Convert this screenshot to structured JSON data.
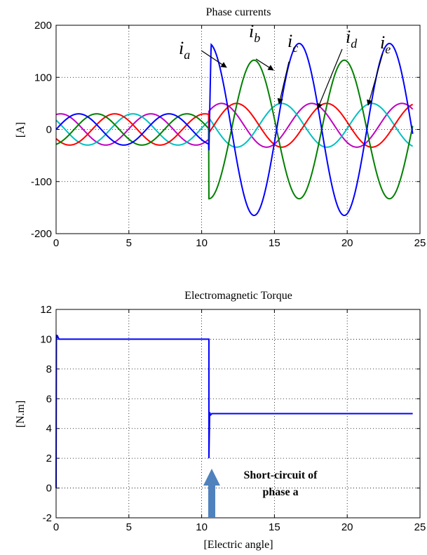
{
  "chart_data": [
    {
      "type": "line",
      "title": "Phase currents",
      "xlabel": "",
      "ylabel": "[A]",
      "xlim": [
        0,
        25
      ],
      "ylim": [
        -200,
        200
      ],
      "xticks": [
        0,
        5,
        10,
        15,
        20,
        25
      ],
      "yticks": [
        -200,
        -100,
        0,
        100,
        200
      ],
      "grid": true,
      "fault_at": 10.5,
      "series": [
        {
          "name": "a",
          "color": "#0000ff",
          "amp_before": 30,
          "phase_deg": 0,
          "amp_after": 165,
          "phase_after_deg": 90,
          "offset_after": 0
        },
        {
          "name": "b",
          "color": "#008000",
          "amp_before": 30,
          "phase_deg": 72,
          "amp_after": 133,
          "phase_after_deg": -90,
          "offset_after": 0
        },
        {
          "name": "c",
          "color": "#ff0000",
          "amp_before": 30,
          "phase_deg": 144,
          "amp_after": 42,
          "phase_after_deg": -20,
          "offset_after": 8
        },
        {
          "name": "d",
          "color": "#00c0c0",
          "amp_before": 30,
          "phase_deg": 216,
          "amp_after": 42,
          "phase_after_deg": 160,
          "offset_after": 8
        },
        {
          "name": "e",
          "color": "#c000c0",
          "amp_before": 30,
          "phase_deg": 288,
          "amp_after": 42,
          "phase_after_deg": 40,
          "offset_after": 8
        }
      ],
      "labels": [
        "i",
        "a",
        "b",
        "c",
        "d",
        "e"
      ]
    },
    {
      "type": "line",
      "title": "Electromagnetic Torque",
      "xlabel": "[Electric angle]",
      "ylabel": "[N.m]",
      "xlim": [
        0,
        25
      ],
      "ylim": [
        -2,
        12
      ],
      "xticks": [
        0,
        5,
        10,
        15,
        20,
        25
      ],
      "yticks": [
        -2,
        0,
        2,
        4,
        6,
        8,
        10,
        12
      ],
      "grid": true,
      "series": [
        {
          "name": "torque",
          "color": "#0000ff",
          "x": [
            0,
            0.02,
            0.05,
            0.1,
            0.2,
            10.5,
            10.5,
            10.55,
            10.6,
            10.7,
            24.5
          ],
          "y": [
            0,
            10.3,
            10.1,
            10.2,
            10,
            10,
            2,
            5.1,
            4.9,
            5,
            5
          ]
        }
      ],
      "annotation": {
        "text_line1": "Short-circuit of",
        "text_line2": "phase a",
        "at_x": 10.5,
        "arrow_color": "#4f81bd"
      }
    }
  ]
}
